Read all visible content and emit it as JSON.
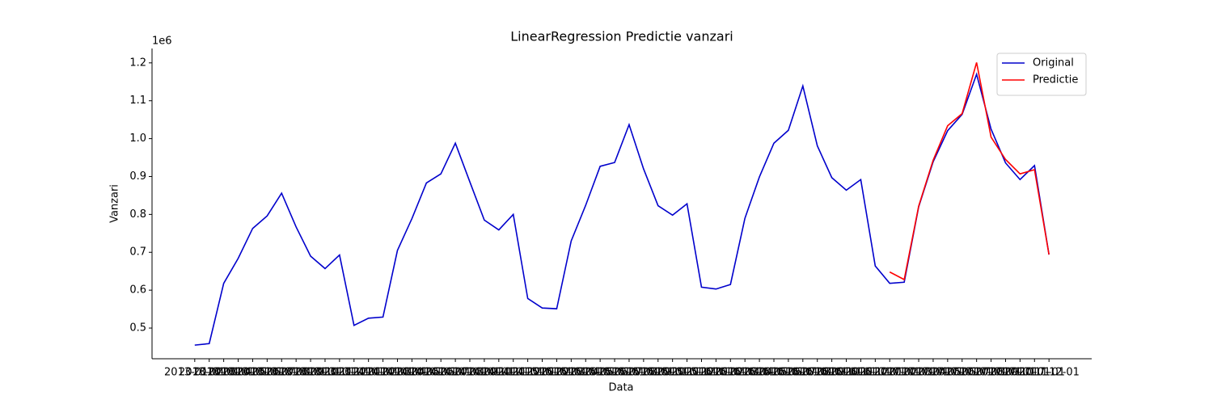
{
  "chart_data": {
    "type": "line",
    "title": "LinearRegression Predictie vanzari",
    "x_label": "Data",
    "y_label": "Vanzari",
    "y_offset_label": "1e6",
    "categories": [
      "2013-01-01",
      "2013-02-01",
      "2013-03-01",
      "2013-04-01",
      "2013-05-01",
      "2013-06-01",
      "2013-07-01",
      "2013-08-01",
      "2013-09-01",
      "2013-10-01",
      "2013-11-01",
      "2013-12-01",
      "2014-01-01",
      "2014-02-01",
      "2014-03-01",
      "2014-04-01",
      "2014-05-01",
      "2014-06-01",
      "2014-07-01",
      "2014-08-01",
      "2014-09-01",
      "2014-10-01",
      "2014-11-01",
      "2014-12-01",
      "2015-01-01",
      "2015-02-01",
      "2015-03-01",
      "2015-04-01",
      "2015-05-01",
      "2015-06-01",
      "2015-07-01",
      "2015-08-01",
      "2015-09-01",
      "2015-10-01",
      "2015-11-01",
      "2015-12-01",
      "2016-01-01",
      "2016-02-01",
      "2016-03-01",
      "2016-04-01",
      "2016-05-01",
      "2016-06-01",
      "2016-07-01",
      "2016-08-01",
      "2016-09-01",
      "2016-10-01",
      "2016-11-01",
      "2016-12-01",
      "2017-01-01",
      "2017-02-01",
      "2017-03-01",
      "2017-04-01",
      "2017-05-01",
      "2017-06-01",
      "2017-07-01",
      "2017-08-01",
      "2017-09-01",
      "2017-10-01",
      "2017-11-01",
      "2017-12-01"
    ],
    "series": [
      {
        "name": "Original",
        "color": "#0000cc",
        "values": [
          0.455,
          0.459,
          0.618,
          0.684,
          0.763,
          0.796,
          0.856,
          0.767,
          0.69,
          0.657,
          0.693,
          0.507,
          0.526,
          0.529,
          0.705,
          0.789,
          0.883,
          0.907,
          0.988,
          0.886,
          0.785,
          0.759,
          0.8,
          0.578,
          0.553,
          0.551,
          0.73,
          0.824,
          0.927,
          0.937,
          1.037,
          0.92,
          0.823,
          0.798,
          0.828,
          0.608,
          0.603,
          0.615,
          0.79,
          0.899,
          0.988,
          1.022,
          1.139,
          0.981,
          0.897,
          0.864,
          0.892,
          0.664,
          0.618,
          0.621,
          0.82,
          0.939,
          1.021,
          1.064,
          1.17,
          1.025,
          0.936,
          0.892,
          0.929,
          0.694
        ]
      },
      {
        "name": "Predictie",
        "color": "#ff0000",
        "values": [
          null,
          null,
          null,
          null,
          null,
          null,
          null,
          null,
          null,
          null,
          null,
          null,
          null,
          null,
          null,
          null,
          null,
          null,
          null,
          null,
          null,
          null,
          null,
          null,
          null,
          null,
          null,
          null,
          null,
          null,
          null,
          null,
          null,
          null,
          null,
          null,
          null,
          null,
          null,
          null,
          null,
          null,
          null,
          null,
          null,
          null,
          null,
          null,
          0.648,
          0.628,
          0.822,
          0.943,
          1.034,
          1.066,
          1.201,
          1.004,
          0.945,
          0.907,
          0.918,
          0.694
        ]
      }
    ],
    "ylim": [
      0.419,
      1.238
    ],
    "yticks": [
      {
        "value": 0.5,
        "label": "0.5"
      },
      {
        "value": 0.6,
        "label": "0.6"
      },
      {
        "value": 0.7,
        "label": "0.7"
      },
      {
        "value": 0.8,
        "label": "0.8"
      },
      {
        "value": 0.9,
        "label": "0.9"
      },
      {
        "value": 1.0,
        "label": "1.0"
      },
      {
        "value": 1.1,
        "label": "1.1"
      },
      {
        "value": 1.2,
        "label": "1.2"
      }
    ],
    "grid": false,
    "legend": "upper-right"
  }
}
